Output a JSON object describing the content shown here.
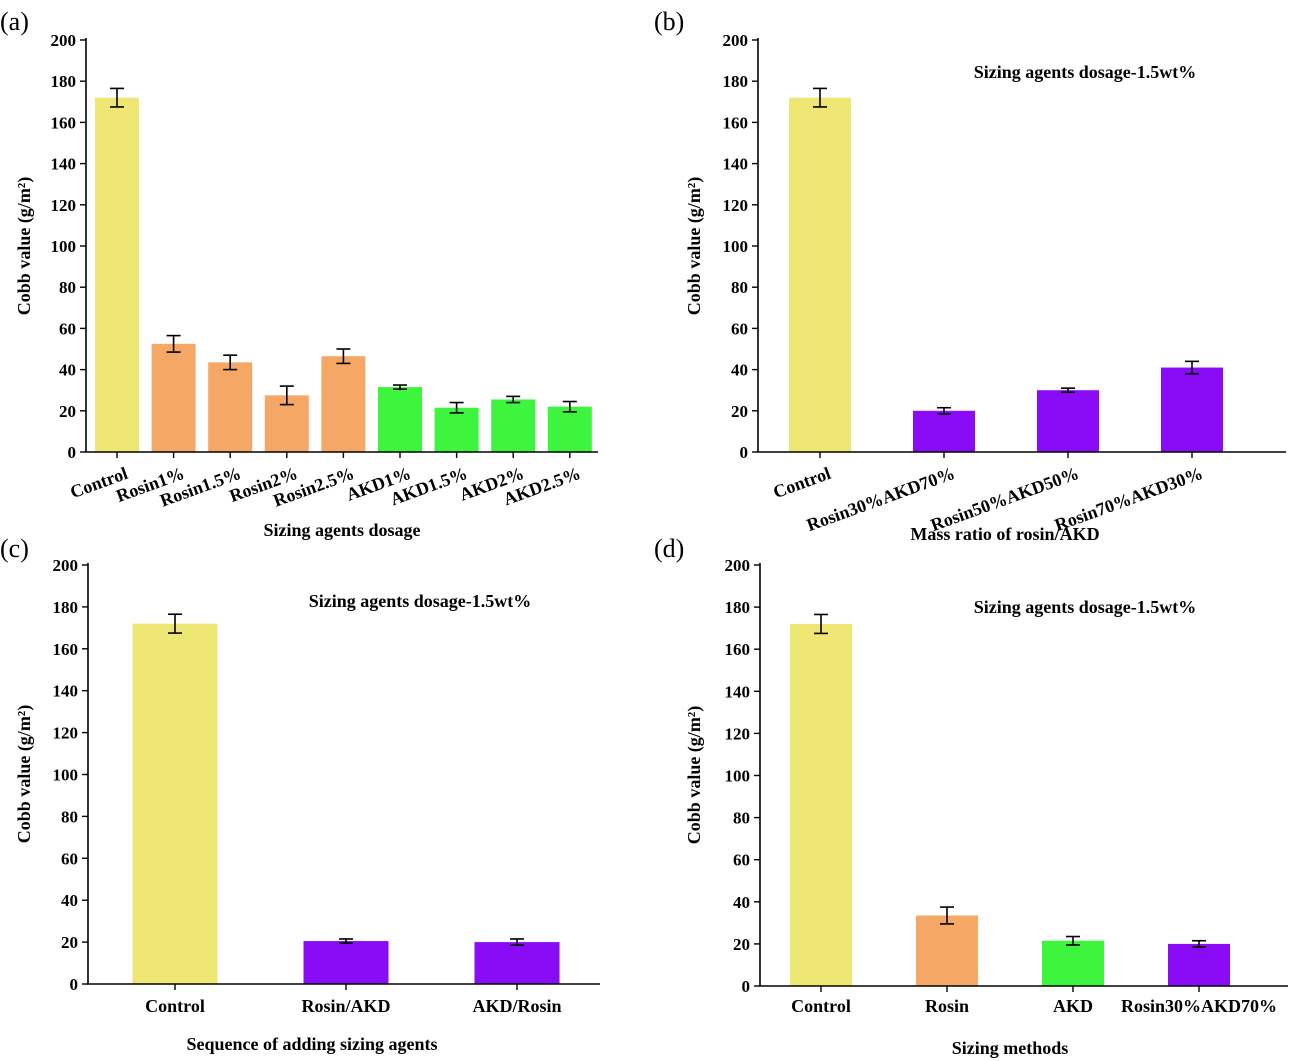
{
  "chart_data": [
    {
      "panel": "(a)",
      "type": "bar",
      "xlabel": "Sizing agents dosage",
      "ylabel": "Cobb value (g/m²)",
      "ylim": [
        0,
        200
      ],
      "yticks": [
        0,
        20,
        40,
        60,
        80,
        100,
        120,
        140,
        160,
        180,
        200
      ],
      "annotation": "",
      "categories": [
        "Control",
        "Rosin1%",
        "Rosin1.5%",
        "Rosin2%",
        "Rosin2.5%",
        "AKD1%",
        "AKD1.5%",
        "AKD2%",
        "AKD2.5%"
      ],
      "values": [
        172,
        52.5,
        43.5,
        27.5,
        46.5,
        31.5,
        21.5,
        25.5,
        22
      ],
      "errors": [
        4.5,
        4,
        3.5,
        4.5,
        3.5,
        1,
        2.5,
        1.5,
        2.5
      ],
      "colors": [
        "#EEE774",
        "#F5A766",
        "#F5A766",
        "#F5A766",
        "#F5A766",
        "#3DF53D",
        "#3DF53D",
        "#3DF53D",
        "#3DF53D"
      ]
    },
    {
      "panel": "(b)",
      "type": "bar",
      "xlabel": "Mass ratio of rosin/AKD",
      "ylabel": "Cobb value (g/m²)",
      "ylim": [
        0,
        200
      ],
      "yticks": [
        0,
        20,
        40,
        60,
        80,
        100,
        120,
        140,
        160,
        180,
        200
      ],
      "annotation": "Sizing agents dosage-1.5wt%",
      "categories": [
        "Control",
        "Rosin30%AKD70%",
        "Rosin50%AKD50%",
        "Rosin70%AKD30%"
      ],
      "values": [
        172,
        20,
        30,
        41
      ],
      "errors": [
        4.5,
        1.5,
        1,
        3
      ],
      "colors": [
        "#EEE774",
        "#8A0BF5",
        "#8A0BF5",
        "#8A0BF5"
      ]
    },
    {
      "panel": "(c)",
      "type": "bar",
      "xlabel": "Sequence of adding sizing agents",
      "ylabel": "Cobb value (g/m²)",
      "ylim": [
        0,
        200
      ],
      "yticks": [
        0,
        20,
        40,
        60,
        80,
        100,
        120,
        140,
        160,
        180,
        200
      ],
      "annotation": "Sizing agents dosage-1.5wt%",
      "categories": [
        "Control",
        "Rosin/AKD",
        "AKD/Rosin"
      ],
      "values": [
        172,
        20.5,
        20
      ],
      "errors": [
        4.5,
        1,
        1.5
      ],
      "colors": [
        "#EEE774",
        "#8A0BF5",
        "#8A0BF5"
      ]
    },
    {
      "panel": "(d)",
      "type": "bar",
      "xlabel": "Sizing methods",
      "ylabel": "Cobb value (g/m²)",
      "ylim": [
        0,
        200
      ],
      "yticks": [
        0,
        20,
        40,
        60,
        80,
        100,
        120,
        140,
        160,
        180,
        200
      ],
      "annotation": "Sizing agents dosage-1.5wt%",
      "categories": [
        "Control",
        "Rosin",
        "AKD",
        "Rosin30%AKD70%"
      ],
      "values": [
        172,
        33.5,
        21.5,
        20
      ],
      "errors": [
        4.5,
        4,
        2,
        1.5
      ],
      "colors": [
        "#EEE774",
        "#F5A766",
        "#3DF53D",
        "#8A0BF5"
      ]
    }
  ]
}
